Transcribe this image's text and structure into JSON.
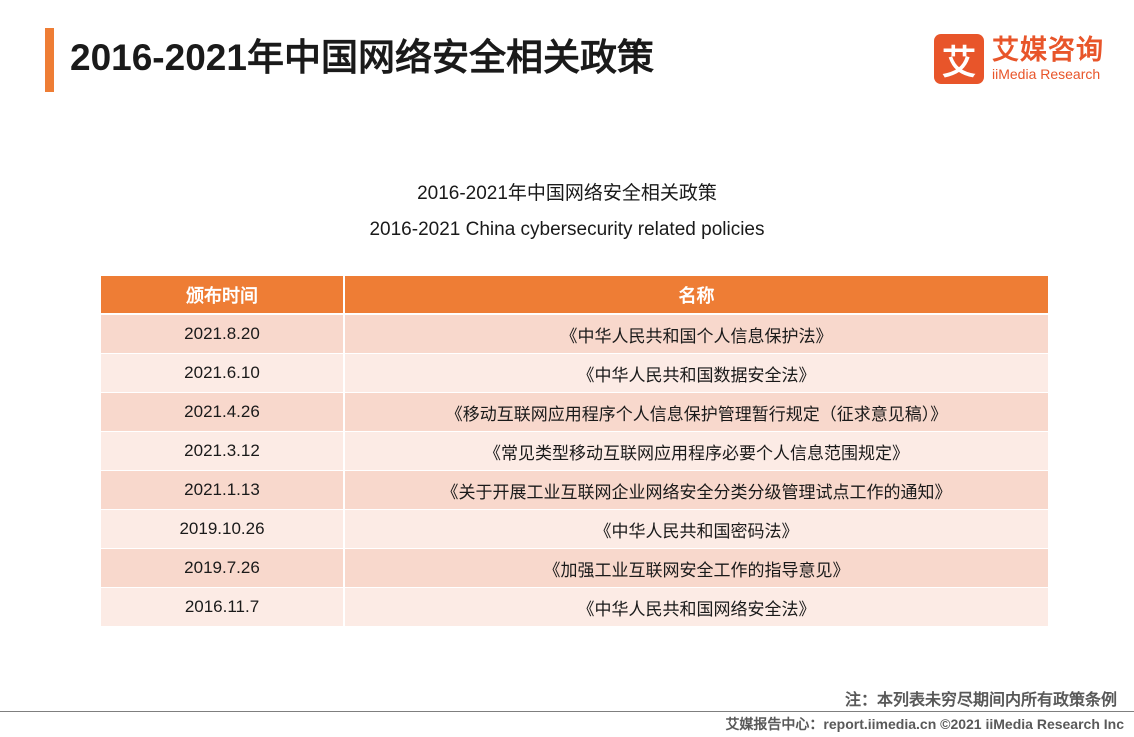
{
  "header": {
    "title": "2016-2021年中国网络安全相关政策"
  },
  "logo": {
    "mark": "艾",
    "name_cn": "艾媒咨询",
    "name_en": "iiMedia Research",
    "color": "#e8552a"
  },
  "table": {
    "title_cn": "2016-2021年中国网络安全相关政策",
    "title_en": "2016-2021 China cybersecurity related policies",
    "columns": [
      "颁布时间",
      "名称"
    ],
    "rows": [
      {
        "date": "2021.8.20",
        "name": "《中华人民共和国个人信息保护法》"
      },
      {
        "date": "2021.6.10",
        "name": "《中华人民共和国数据安全法》"
      },
      {
        "date": "2021.4.26",
        "name": "《移动互联网应用程序个人信息保护管理暂行规定（征求意见稿）》"
      },
      {
        "date": "2021.3.12",
        "name": "《常见类型移动互联网应用程序必要个人信息范围规定》"
      },
      {
        "date": "2021.1.13",
        "name": "《关于开展工业互联网企业网络安全分类分级管理试点工作的通知》"
      },
      {
        "date": "2019.10.26",
        "name": "《中华人民共和国密码法》"
      },
      {
        "date": "2019.7.26",
        "name": "《加强工业互联网安全工作的指导意见》"
      },
      {
        "date": "2016.11.7",
        "name": "《中华人民共和国网络安全法》"
      }
    ]
  },
  "note": "注：本列表未穷尽期间内所有政策条例",
  "footer": "艾媒报告中心：report.iimedia.cn  ©2021  iiMedia Research  Inc",
  "colors": {
    "accent": "#ee7d35",
    "row_odd": "#f8d8cc",
    "row_even": "#fcebe5"
  }
}
